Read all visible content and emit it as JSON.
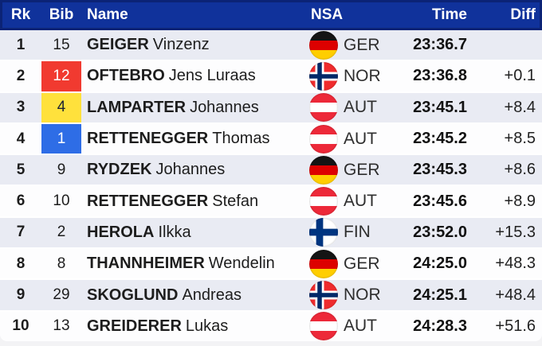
{
  "table": {
    "headers": {
      "rank": "Rk",
      "bib": "Bib",
      "name": "Name",
      "nsa": "NSA",
      "time": "Time",
      "diff": "Diff"
    },
    "rows": [
      {
        "rank": "1",
        "bib": "15",
        "bib_bg": null,
        "bib_text": null,
        "surname": "GEIGER",
        "given_name": "Vinzenz",
        "nsa": "GER",
        "time": "23:36.7",
        "diff": ""
      },
      {
        "rank": "2",
        "bib": "12",
        "bib_bg": "#f13a30",
        "bib_text": "#ffffff",
        "surname": "OFTEBRO",
        "given_name": "Jens Luraas",
        "nsa": "NOR",
        "time": "23:36.8",
        "diff": "+0.1"
      },
      {
        "rank": "3",
        "bib": "4",
        "bib_bg": "#ffe13c",
        "bib_text": "#1c2333",
        "surname": "LAMPARTER",
        "given_name": "Johannes",
        "nsa": "AUT",
        "time": "23:45.1",
        "diff": "+8.4"
      },
      {
        "rank": "4",
        "bib": "1",
        "bib_bg": "#2e6de6",
        "bib_text": "#ffffff",
        "surname": "RETTENEGGER",
        "given_name": "Thomas",
        "nsa": "AUT",
        "time": "23:45.2",
        "diff": "+8.5"
      },
      {
        "rank": "5",
        "bib": "9",
        "bib_bg": null,
        "bib_text": null,
        "surname": "RYDZEK",
        "given_name": "Johannes",
        "nsa": "GER",
        "time": "23:45.3",
        "diff": "+8.6"
      },
      {
        "rank": "6",
        "bib": "10",
        "bib_bg": null,
        "bib_text": null,
        "surname": "RETTENEGGER",
        "given_name": "Stefan",
        "nsa": "AUT",
        "time": "23:45.6",
        "diff": "+8.9"
      },
      {
        "rank": "7",
        "bib": "2",
        "bib_bg": null,
        "bib_text": null,
        "surname": "HEROLA",
        "given_name": "Ilkka",
        "nsa": "FIN",
        "time": "23:52.0",
        "diff": "+15.3"
      },
      {
        "rank": "8",
        "bib": "8",
        "bib_bg": null,
        "bib_text": null,
        "surname": "THANNHEIMER",
        "given_name": "Wendelin",
        "nsa": "GER",
        "time": "24:25.0",
        "diff": "+48.3"
      },
      {
        "rank": "9",
        "bib": "29",
        "bib_bg": null,
        "bib_text": null,
        "surname": "SKOGLUND",
        "given_name": "Andreas",
        "nsa": "NOR",
        "time": "24:25.1",
        "diff": "+48.4"
      },
      {
        "rank": "10",
        "bib": "13",
        "bib_bg": null,
        "bib_text": null,
        "surname": "GREIDERER",
        "given_name": "Lukas",
        "nsa": "AUT",
        "time": "24:28.3",
        "diff": "+51.6"
      }
    ]
  },
  "flags": {
    "GER": {
      "type": "hstripes",
      "colors": [
        "#141414",
        "#dd0000",
        "#ffce00"
      ]
    },
    "AUT": {
      "type": "hstripes",
      "colors": [
        "#ed2939",
        "#ffffff",
        "#ed2939"
      ]
    },
    "NOR": {
      "type": "nordic",
      "bg": "#ef2b2d",
      "outer": "#ffffff",
      "outer_w": 11,
      "inner": "#002868",
      "inner_w": 5.5
    },
    "FIN": {
      "type": "nordic",
      "bg": "#ffffff",
      "outer": "#003580",
      "outer_w": 8.5,
      "inner": "#003580",
      "inner_w": 8.5
    }
  },
  "colors": {
    "header_bg": "#10329b",
    "header_border": "#0b2376",
    "header_text": "#ffffff",
    "row_odd": "#e9ebf3",
    "row_even": "#fdfdfe",
    "row_separator": "#ffffff",
    "page_bg": "#f3f3f5",
    "text_dark": "#1d1d1d"
  }
}
